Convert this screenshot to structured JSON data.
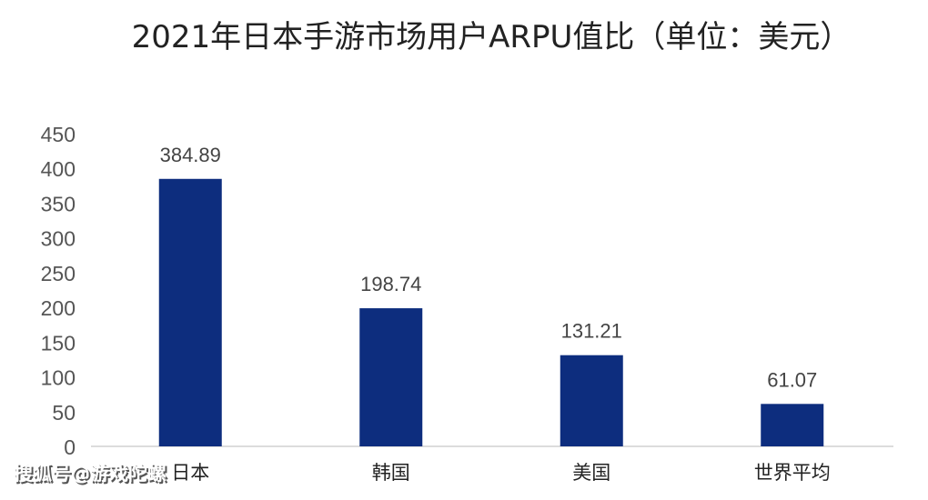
{
  "chart_data": {
    "type": "bar",
    "title": "2021年日本手游市场用户ARPU值比（单位：美元）",
    "categories": [
      "日本",
      "韩国",
      "美国",
      "世界平均"
    ],
    "values": [
      384.89,
      198.74,
      131.21,
      61.07
    ],
    "value_labels": [
      "384.89",
      "198.74",
      "131.21",
      "61.07"
    ],
    "ylim": [
      0,
      450
    ],
    "yticks": [
      0,
      50,
      100,
      150,
      200,
      250,
      300,
      350,
      400,
      450
    ],
    "grid": false,
    "legend": "none",
    "bar_color": "#0d2d7e"
  },
  "watermark": {
    "text": "搜狐号@游戏陀螺"
  }
}
